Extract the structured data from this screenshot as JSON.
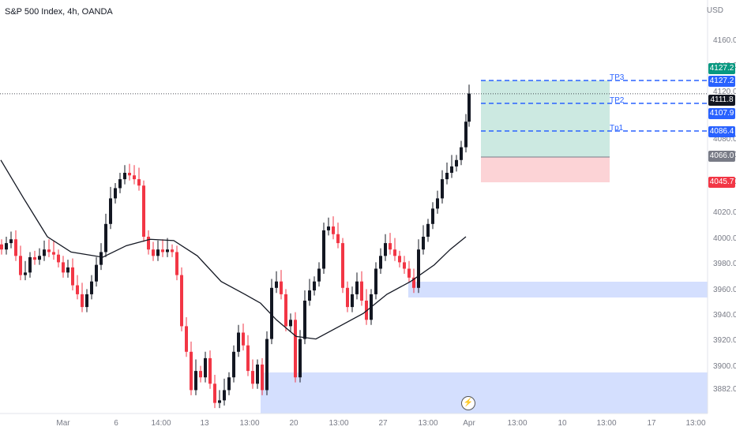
{
  "header": {
    "title": "S&P 500 Index, 4h, OANDA",
    "currency": "USD"
  },
  "colors": {
    "up": "#131722",
    "down": "#f23645",
    "ma": "#131722",
    "zone": "#cdd9fe",
    "tp": "#2962ff",
    "profit": "#cce9e1",
    "loss": "#fcd3d6"
  },
  "y_axis": {
    "ticks": [
      "4160.0",
      "4140.0",
      "4120.0",
      "4080.0",
      "4060.0",
      "4040.0",
      "4020.0",
      "4000.0",
      "3980.0",
      "3960.0",
      "3940.0",
      "3920.0",
      "3900.0",
      "3882.0"
    ]
  },
  "x_axis": {
    "ticks": [
      "Mar",
      "6",
      "14:00",
      "13",
      "13:00",
      "20",
      "13:00",
      "27",
      "13:00",
      "Apr",
      "13:00",
      "10",
      "13:00",
      "17",
      "13:00"
    ]
  },
  "price_tags": [
    {
      "value": "4127.2",
      "color": "#089981"
    },
    {
      "value": "4127.2",
      "color": "#2962ff"
    },
    {
      "value": "4111.8",
      "color": "#131722"
    },
    {
      "value": "4107.9",
      "color": "#2962ff"
    },
    {
      "value": "4086.4",
      "color": "#2962ff"
    },
    {
      "value": "4066.0",
      "color": "#787b86"
    },
    {
      "value": "4045.7",
      "color": "#f23645"
    }
  ],
  "targets": [
    {
      "label": "TP3"
    },
    {
      "label": "TP2"
    },
    {
      "label": "Tp1"
    }
  ],
  "chart_data": {
    "type": "candlestick",
    "price_range": [
      3870,
      4180
    ],
    "last_price": 4111.8,
    "moving_average": [
      [
        1,
        4060
      ],
      [
        30,
        4030
      ],
      [
        60,
        4000
      ],
      [
        90,
        3988
      ],
      [
        130,
        3984
      ],
      [
        160,
        3993
      ],
      [
        190,
        3998
      ],
      [
        220,
        3997
      ],
      [
        250,
        3985
      ],
      [
        280,
        3965
      ],
      [
        310,
        3955
      ],
      [
        330,
        3948
      ],
      [
        350,
        3935
      ],
      [
        375,
        3922
      ],
      [
        400,
        3920
      ],
      [
        430,
        3930
      ],
      [
        460,
        3940
      ],
      [
        490,
        3955
      ],
      [
        520,
        3965
      ],
      [
        550,
        3978
      ],
      [
        570,
        3990
      ],
      [
        590,
        4000
      ]
    ],
    "candles": [
      [
        2,
        3990
      ],
      [
        8,
        3995
      ],
      [
        14,
        3998
      ],
      [
        20,
        3985
      ],
      [
        26,
        3970
      ],
      [
        32,
        3972
      ],
      [
        38,
        3984
      ],
      [
        44,
        3982
      ],
      [
        50,
        3985
      ],
      [
        56,
        3990
      ],
      [
        62,
        3988
      ],
      [
        68,
        3986
      ],
      [
        74,
        3980
      ],
      [
        80,
        3972
      ],
      [
        86,
        3976
      ],
      [
        92,
        3962
      ],
      [
        98,
        3955
      ],
      [
        104,
        3945
      ],
      [
        110,
        3955
      ],
      [
        116,
        3965
      ],
      [
        122,
        3978
      ],
      [
        128,
        3988
      ],
      [
        134,
        4010
      ],
      [
        140,
        4030
      ],
      [
        146,
        4038
      ],
      [
        152,
        4045
      ],
      [
        158,
        4050
      ],
      [
        164,
        4048
      ],
      [
        170,
        4045
      ],
      [
        176,
        4040
      ],
      [
        182,
        4000
      ],
      [
        188,
        3990
      ],
      [
        194,
        3985
      ],
      [
        200,
        3990
      ],
      [
        206,
        3988
      ],
      [
        212,
        3990
      ],
      [
        218,
        3988
      ],
      [
        224,
        3970
      ],
      [
        230,
        3930
      ],
      [
        236,
        3910
      ],
      [
        242,
        3880
      ],
      [
        248,
        3895
      ],
      [
        254,
        3890
      ],
      [
        260,
        3905
      ],
      [
        266,
        3885
      ],
      [
        272,
        3870
      ],
      [
        278,
        3872
      ],
      [
        284,
        3880
      ],
      [
        290,
        3890
      ],
      [
        296,
        3910
      ],
      [
        302,
        3925
      ],
      [
        308,
        3915
      ],
      [
        314,
        3895
      ],
      [
        320,
        3885
      ],
      [
        326,
        3900
      ],
      [
        332,
        3880
      ],
      [
        338,
        3920
      ],
      [
        344,
        3960
      ],
      [
        350,
        3965
      ],
      [
        356,
        3955
      ],
      [
        362,
        3930
      ],
      [
        368,
        3935
      ],
      [
        374,
        3890
      ],
      [
        380,
        3920
      ],
      [
        386,
        3950
      ],
      [
        392,
        3958
      ],
      [
        398,
        3965
      ],
      [
        404,
        3975
      ],
      [
        410,
        4005
      ],
      [
        416,
        4008
      ],
      [
        422,
        4002
      ],
      [
        428,
        3995
      ],
      [
        434,
        3960
      ],
      [
        440,
        3945
      ],
      [
        446,
        3955
      ],
      [
        452,
        3965
      ],
      [
        458,
        3950
      ],
      [
        464,
        3935
      ],
      [
        470,
        3955
      ],
      [
        476,
        3975
      ],
      [
        482,
        3985
      ],
      [
        488,
        3995
      ],
      [
        494,
        3990
      ],
      [
        500,
        3985
      ],
      [
        506,
        3980
      ],
      [
        512,
        3975
      ],
      [
        518,
        3968
      ],
      [
        524,
        3960
      ],
      [
        530,
        3990
      ],
      [
        536,
        4000
      ],
      [
        542,
        4010
      ],
      [
        548,
        4022
      ],
      [
        554,
        4030
      ],
      [
        560,
        4045
      ],
      [
        566,
        4050
      ],
      [
        572,
        4055
      ],
      [
        578,
        4060
      ],
      [
        584,
        4070
      ],
      [
        590,
        4090
      ],
      [
        594,
        4112
      ]
    ]
  }
}
